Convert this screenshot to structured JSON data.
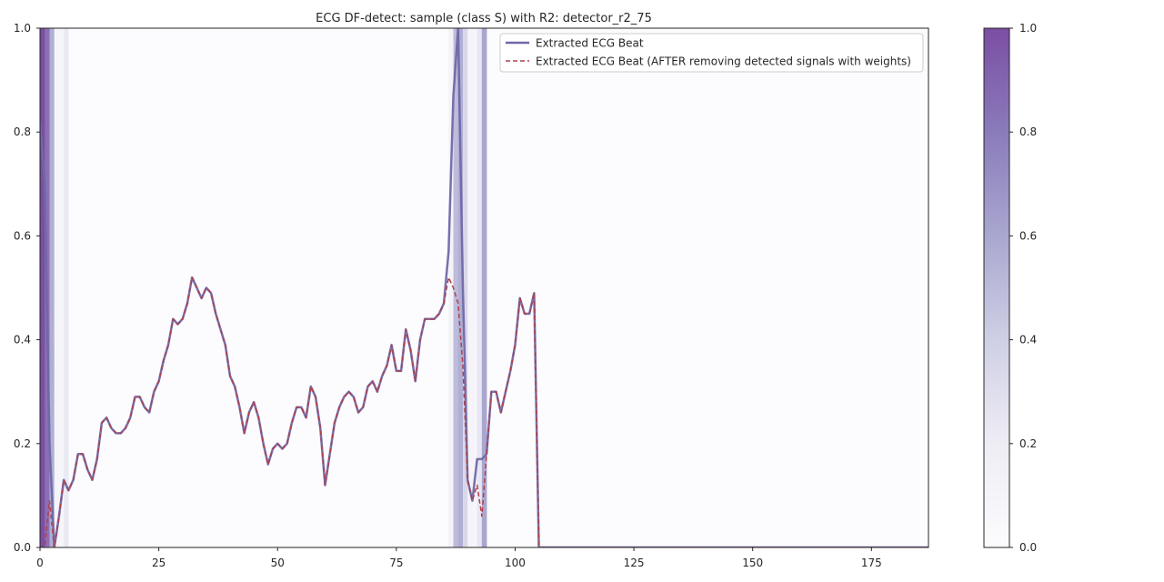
{
  "chart_data": {
    "type": "line",
    "title": "ECG DF-detect: sample (class S) with R2: detector_r2_75",
    "xlabel": "",
    "ylabel": "",
    "xlim": [
      0,
      187
    ],
    "ylim": [
      0,
      1
    ],
    "x_ticks": [
      0,
      25,
      50,
      75,
      100,
      125,
      150,
      175
    ],
    "y_ticks": [
      0.0,
      0.2,
      0.4,
      0.6,
      0.8,
      1.0
    ],
    "legend_position": "upper right",
    "grid": false,
    "colors": {
      "original": "#6f68a8",
      "cleaned": "#b0404c",
      "weight_low": "#fcfbfd",
      "weight_high": "#7b4ea3",
      "axes_border": "#262626"
    },
    "series": [
      {
        "name": "Extracted ECG Beat",
        "style": "solid",
        "values": [
          0.82,
          0.7,
          0.2,
          0.0,
          0.06,
          0.13,
          0.11,
          0.13,
          0.18,
          0.18,
          0.15,
          0.13,
          0.17,
          0.24,
          0.25,
          0.23,
          0.22,
          0.22,
          0.23,
          0.25,
          0.29,
          0.29,
          0.27,
          0.26,
          0.3,
          0.32,
          0.36,
          0.39,
          0.44,
          0.43,
          0.44,
          0.47,
          0.52,
          0.5,
          0.48,
          0.5,
          0.49,
          0.45,
          0.42,
          0.39,
          0.33,
          0.31,
          0.27,
          0.22,
          0.26,
          0.28,
          0.25,
          0.2,
          0.16,
          0.19,
          0.2,
          0.19,
          0.2,
          0.24,
          0.27,
          0.27,
          0.25,
          0.31,
          0.29,
          0.23,
          0.12,
          0.18,
          0.24,
          0.27,
          0.29,
          0.3,
          0.29,
          0.26,
          0.27,
          0.31,
          0.32,
          0.3,
          0.33,
          0.35,
          0.39,
          0.34,
          0.34,
          0.42,
          0.38,
          0.32,
          0.4,
          0.44,
          0.44,
          0.44,
          0.45,
          0.47,
          0.57,
          0.87,
          1.0,
          0.5,
          0.13,
          0.09,
          0.17,
          0.17,
          0.18,
          0.3,
          0.3,
          0.26,
          0.3,
          0.34,
          0.39,
          0.48,
          0.45,
          0.45,
          0.49,
          0.0,
          0.0,
          0.0,
          0.0,
          0.0,
          0.0,
          0.0,
          0.0,
          0.0,
          0.0,
          0.0,
          0.0,
          0.0,
          0.0,
          0.0,
          0.0,
          0.0,
          0.0,
          0.0,
          0.0,
          0.0,
          0.0,
          0.0,
          0.0,
          0.0,
          0.0,
          0.0,
          0.0,
          0.0,
          0.0,
          0.0,
          0.0,
          0.0,
          0.0,
          0.0,
          0.0,
          0.0,
          0.0,
          0.0,
          0.0,
          0.0,
          0.0,
          0.0,
          0.0,
          0.0,
          0.0,
          0.0,
          0.0,
          0.0,
          0.0,
          0.0,
          0.0,
          0.0,
          0.0,
          0.0,
          0.0,
          0.0,
          0.0,
          0.0,
          0.0,
          0.0,
          0.0,
          0.0,
          0.0,
          0.0,
          0.0,
          0.0,
          0.0,
          0.0,
          0.0,
          0.0,
          0.0,
          0.0,
          0.0,
          0.0,
          0.0,
          0.0,
          0.0,
          0.0,
          0.0,
          0.0,
          0.0,
          0.0,
          0.0,
          0.0,
          0.0
        ]
      },
      {
        "name": "Extracted ECG Beat (AFTER removing detected signals with weights)",
        "style": "dashed",
        "values": [
          0.0,
          0.0,
          0.09,
          0.0,
          0.06,
          0.13,
          0.11,
          0.13,
          0.18,
          0.18,
          0.15,
          0.13,
          0.17,
          0.24,
          0.25,
          0.23,
          0.22,
          0.22,
          0.23,
          0.25,
          0.29,
          0.29,
          0.27,
          0.26,
          0.3,
          0.32,
          0.36,
          0.39,
          0.44,
          0.43,
          0.44,
          0.47,
          0.52,
          0.5,
          0.48,
          0.5,
          0.49,
          0.45,
          0.42,
          0.39,
          0.33,
          0.31,
          0.27,
          0.22,
          0.26,
          0.28,
          0.25,
          0.2,
          0.16,
          0.19,
          0.2,
          0.19,
          0.2,
          0.24,
          0.27,
          0.27,
          0.25,
          0.31,
          0.29,
          0.23,
          0.12,
          0.18,
          0.24,
          0.27,
          0.29,
          0.3,
          0.29,
          0.26,
          0.27,
          0.31,
          0.32,
          0.3,
          0.33,
          0.35,
          0.39,
          0.34,
          0.34,
          0.42,
          0.38,
          0.32,
          0.4,
          0.44,
          0.44,
          0.44,
          0.45,
          0.47,
          0.52,
          0.5,
          0.47,
          0.35,
          0.13,
          0.09,
          0.12,
          0.06,
          0.18,
          0.3,
          0.3,
          0.26,
          0.3,
          0.34,
          0.39,
          0.48,
          0.45,
          0.45,
          0.49,
          0.0,
          0.0,
          0.0,
          0.0,
          0.0,
          0.0,
          0.0,
          0.0,
          0.0,
          0.0,
          0.0,
          0.0,
          0.0,
          0.0,
          0.0,
          0.0,
          0.0,
          0.0,
          0.0,
          0.0,
          0.0,
          0.0,
          0.0,
          0.0,
          0.0,
          0.0,
          0.0,
          0.0,
          0.0,
          0.0,
          0.0,
          0.0,
          0.0,
          0.0,
          0.0,
          0.0,
          0.0,
          0.0,
          0.0,
          0.0,
          0.0,
          0.0,
          0.0,
          0.0,
          0.0,
          0.0,
          0.0,
          0.0,
          0.0,
          0.0,
          0.0,
          0.0,
          0.0,
          0.0,
          0.0,
          0.0,
          0.0,
          0.0,
          0.0,
          0.0,
          0.0,
          0.0,
          0.0,
          0.0,
          0.0,
          0.0,
          0.0,
          0.0,
          0.0,
          0.0,
          0.0,
          0.0,
          0.0,
          0.0,
          0.0,
          0.0,
          0.0,
          0.0,
          0.0,
          0.0,
          0.0,
          0.0,
          0.0,
          0.0,
          0.0
        ]
      }
    ],
    "weights": [
      {
        "x": 0,
        "w": 1.0
      },
      {
        "x": 1,
        "w": 0.85
      },
      {
        "x": 2,
        "w": 0.55
      },
      {
        "x": 3,
        "w": 0.05
      },
      {
        "x": 4,
        "w": 0.04
      },
      {
        "x": 5,
        "w": 0.12
      },
      {
        "x": 86,
        "w": 0.06
      },
      {
        "x": 87,
        "w": 0.45
      },
      {
        "x": 88,
        "w": 0.55
      },
      {
        "x": 89,
        "w": 0.25
      },
      {
        "x": 90,
        "w": 0.05
      },
      {
        "x": 91,
        "w": 0.04
      },
      {
        "x": 92,
        "w": 0.15
      },
      {
        "x": 93,
        "w": 0.6
      }
    ],
    "colorbar": {
      "min": 0.0,
      "max": 1.0,
      "ticks": [
        0.0,
        0.2,
        0.4,
        0.6,
        0.8,
        1.0
      ]
    }
  }
}
